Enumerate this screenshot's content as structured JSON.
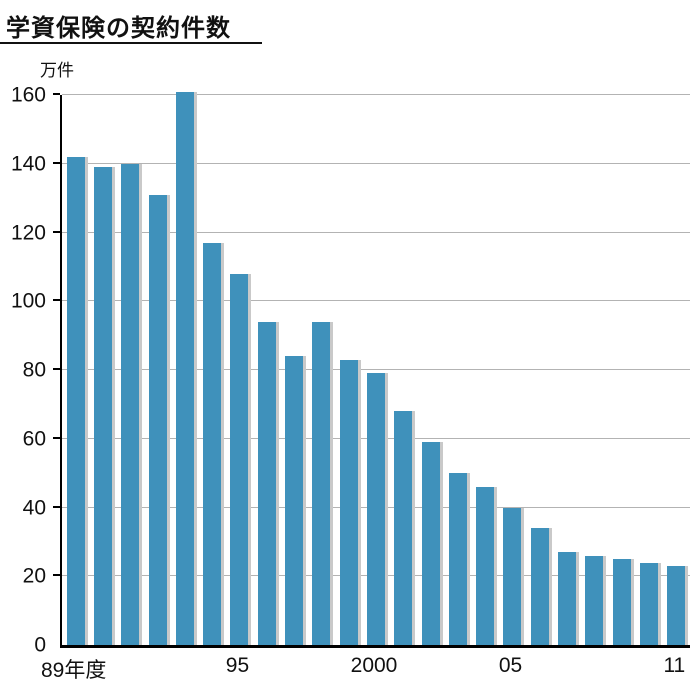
{
  "title": "学資保険の契約件数",
  "y_unit_label": "万件",
  "chart_data": {
    "type": "bar",
    "title": "学資保険の契約件数",
    "ylabel": "万件",
    "xlabel": "",
    "ylim": [
      0,
      160
    ],
    "yticks": [
      0,
      20,
      40,
      60,
      80,
      100,
      120,
      140,
      160
    ],
    "categories": [
      "1989",
      "1990",
      "1991",
      "1992",
      "1993",
      "1994",
      "1995",
      "1996",
      "1997",
      "1998",
      "1999",
      "2000",
      "2001",
      "2002",
      "2003",
      "2004",
      "2005",
      "2006",
      "2007",
      "2008",
      "2009",
      "2010",
      "2011"
    ],
    "values": [
      142,
      139,
      140,
      131,
      161,
      117,
      108,
      94,
      84,
      94,
      83,
      79,
      68,
      59,
      50,
      46,
      40,
      34,
      27,
      26,
      25,
      24,
      23
    ],
    "x_axis_labels": [
      {
        "index": 0,
        "label": "89年度"
      },
      {
        "index": 6,
        "label": "95"
      },
      {
        "index": 11,
        "label": "2000"
      },
      {
        "index": 16,
        "label": "05"
      },
      {
        "index": 22,
        "label": "11"
      }
    ],
    "grid": true,
    "legend": "none",
    "bar_color": "#3f91bb",
    "bar_shadow_color": "#c9c9c9",
    "gridline_color": "#b3b3b3"
  }
}
